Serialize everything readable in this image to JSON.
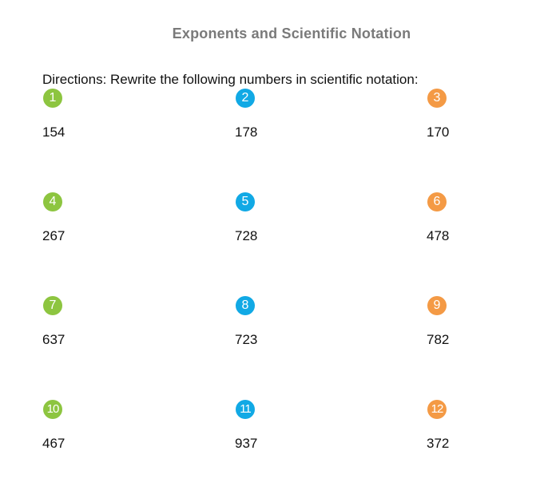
{
  "page": {
    "title": "Exponents and Scientific Notation",
    "directions": "Directions: Rewrite the following numbers in scientific notation:"
  },
  "colors": {
    "green": "#8dc540",
    "blue": "#11a9e5",
    "orange": "#f49a45",
    "title_gray": "#7a7a7a"
  },
  "problems": [
    {
      "label": "1",
      "value": "154",
      "color": "green"
    },
    {
      "label": "2",
      "value": "178",
      "color": "blue"
    },
    {
      "label": "3",
      "value": "170",
      "color": "orange"
    },
    {
      "label": "4",
      "value": "267",
      "color": "green"
    },
    {
      "label": "5",
      "value": "728",
      "color": "blue"
    },
    {
      "label": "6",
      "value": "478",
      "color": "orange"
    },
    {
      "label": "7",
      "value": "637",
      "color": "green"
    },
    {
      "label": "8",
      "value": "723",
      "color": "blue"
    },
    {
      "label": "9",
      "value": "782",
      "color": "orange"
    },
    {
      "label": "10",
      "value": "467",
      "color": "green"
    },
    {
      "label": "11",
      "value": "937",
      "color": "blue"
    },
    {
      "label": "12",
      "value": "372",
      "color": "orange"
    }
  ]
}
